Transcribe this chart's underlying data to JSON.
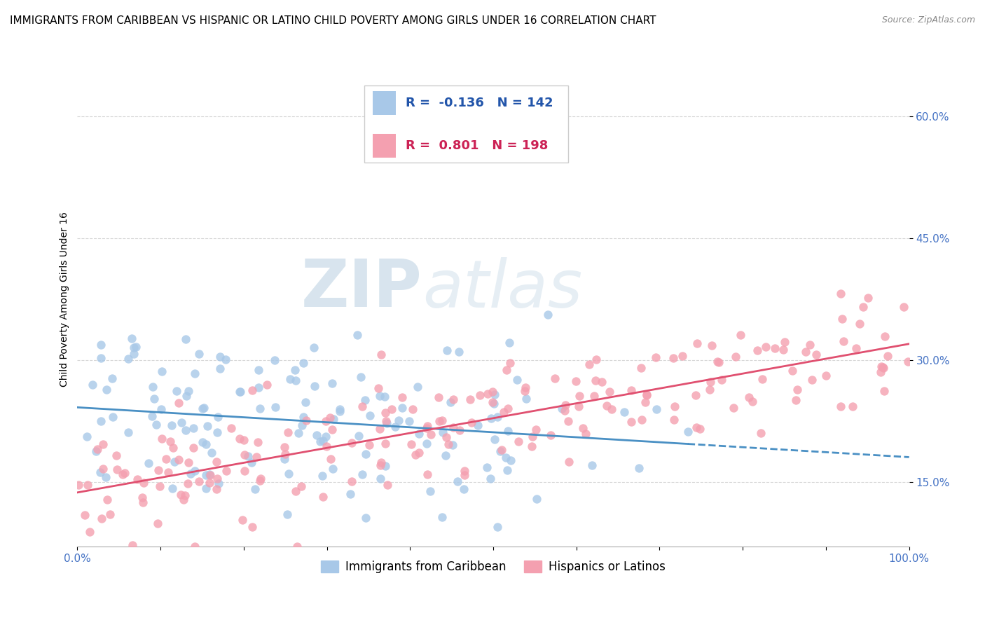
{
  "title": "IMMIGRANTS FROM CARIBBEAN VS HISPANIC OR LATINO CHILD POVERTY AMONG GIRLS UNDER 16 CORRELATION CHART",
  "source": "Source: ZipAtlas.com",
  "ylabel": "Child Poverty Among Girls Under 16",
  "R_caribbean": -0.136,
  "N_caribbean": 142,
  "R_hispanic": 0.801,
  "N_hispanic": 198,
  "color_caribbean": "#a8c8e8",
  "color_hispanic": "#f4a0b0",
  "color_line_caribbean": "#4a90c4",
  "color_line_hispanic": "#e05070",
  "legend_label_caribbean": "Immigrants from Caribbean",
  "legend_label_hispanic": "Hispanics or Latinos",
  "yticks": [
    0.15,
    0.3,
    0.45,
    0.6
  ],
  "ytick_labels": [
    "15.0%",
    "30.0%",
    "45.0%",
    "60.0%"
  ],
  "xlim": [
    0.0,
    1.0
  ],
  "ylim": [
    0.07,
    0.68
  ],
  "watermark_zip": "ZIP",
  "watermark_atlas": "atlas",
  "background_color": "#ffffff",
  "grid_color": "#d8d8d8",
  "title_fontsize": 11,
  "axis_label_fontsize": 10,
  "tick_fontsize": 11,
  "legend_fontsize": 12,
  "source_fontsize": 9
}
